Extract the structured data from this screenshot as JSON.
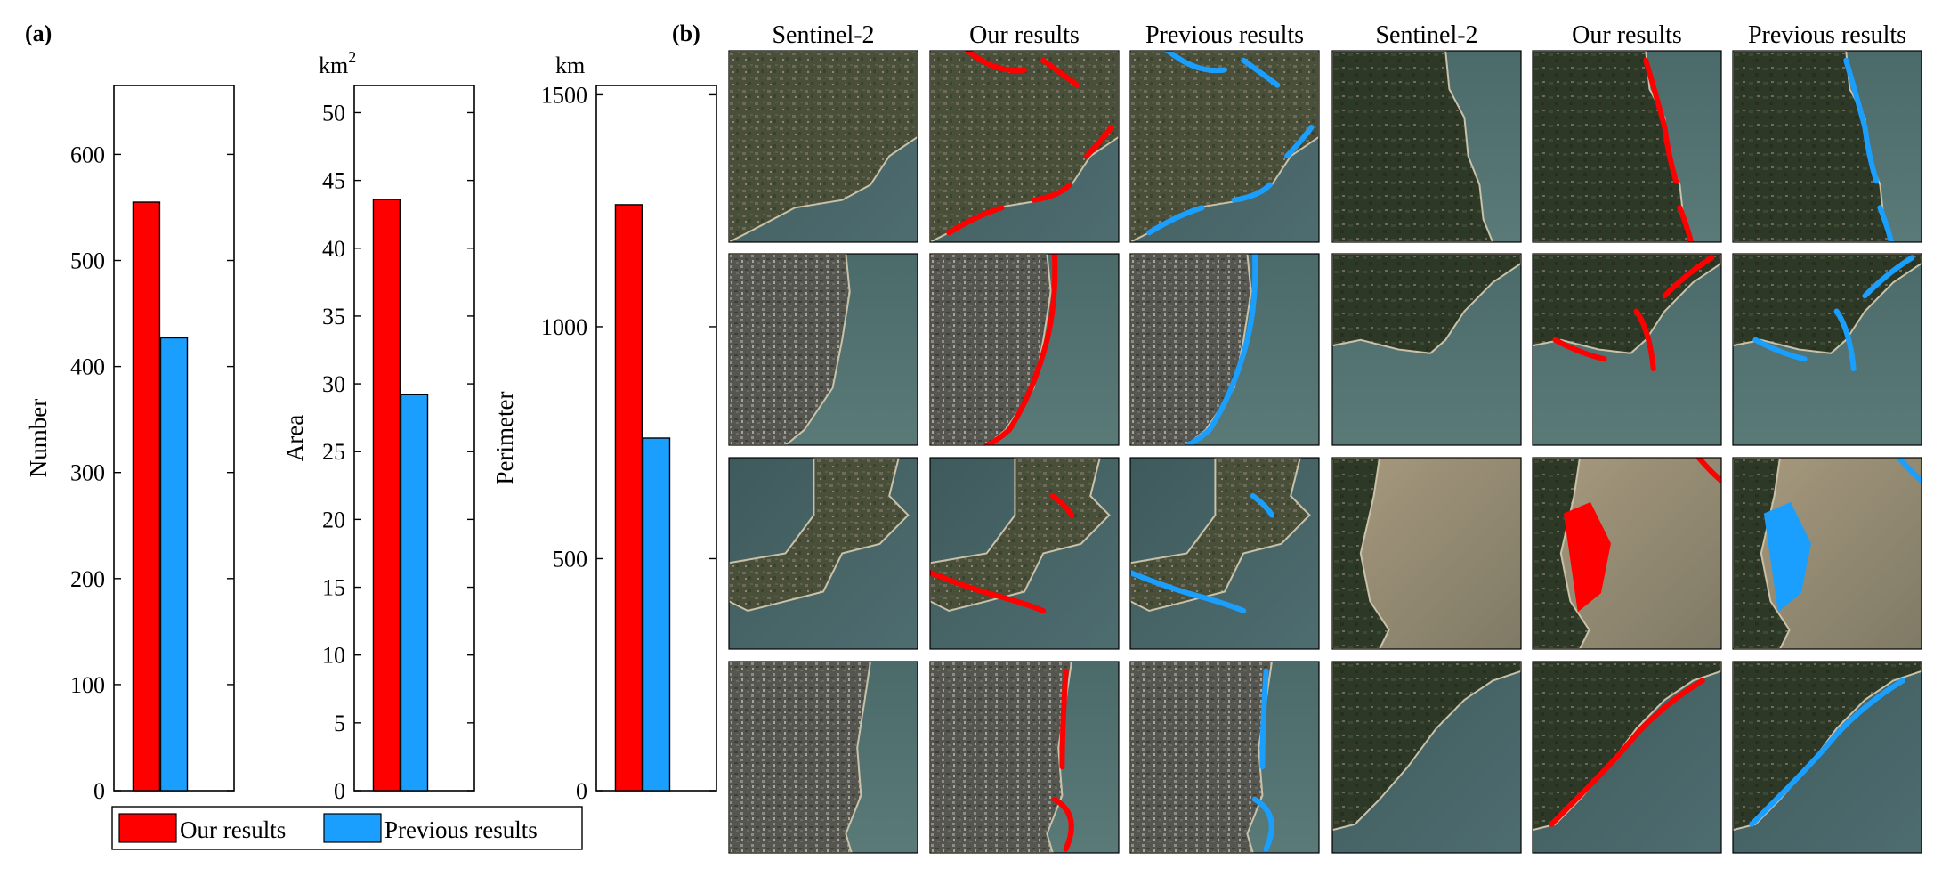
{
  "panel_a_label": "(a)",
  "panel_b_label": "(b)",
  "colors": {
    "ours": "#ff0000",
    "previous": "#1a9fff"
  },
  "legend": {
    "ours": "Our results",
    "previous": "Previous results"
  },
  "chart_data": [
    {
      "type": "bar",
      "categories": [
        "Our results",
        "Previous results"
      ],
      "values": [
        555,
        427
      ],
      "ylabel": "Number",
      "unit": "",
      "ylim": [
        0,
        665
      ],
      "yticks": [
        0,
        100,
        200,
        300,
        400,
        500,
        600
      ]
    },
    {
      "type": "bar",
      "categories": [
        "Our results",
        "Previous results"
      ],
      "values": [
        43.6,
        29.2
      ],
      "ylabel": "Area",
      "unit": "km2",
      "ylim": [
        0,
        52
      ],
      "yticks": [
        0,
        5,
        10,
        15,
        20,
        25,
        30,
        35,
        40,
        45,
        50
      ]
    },
    {
      "type": "bar",
      "categories": [
        "Our results",
        "Previous results"
      ],
      "values": [
        1263,
        760
      ],
      "ylabel": "Perimeter",
      "unit": "km",
      "ylim": [
        0,
        1520
      ],
      "yticks": [
        0,
        500,
        1000,
        1500
      ]
    }
  ],
  "grid": {
    "column_headers": [
      "Sentinel-2",
      "Our results",
      "Previous results",
      "Sentinel-2",
      "Our results",
      "Previous results"
    ]
  }
}
